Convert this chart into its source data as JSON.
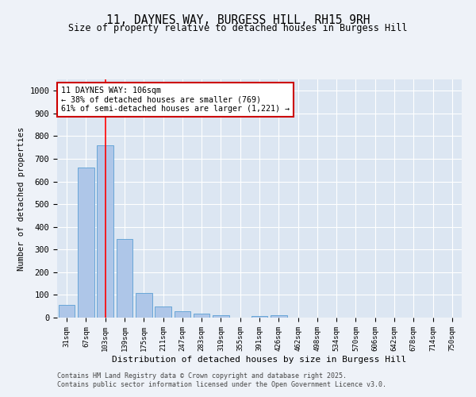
{
  "title_line1": "11, DAYNES WAY, BURGESS HILL, RH15 9RH",
  "title_line2": "Size of property relative to detached houses in Burgess Hill",
  "xlabel": "Distribution of detached houses by size in Burgess Hill",
  "ylabel": "Number of detached properties",
  "categories": [
    "31sqm",
    "67sqm",
    "103sqm",
    "139sqm",
    "175sqm",
    "211sqm",
    "247sqm",
    "283sqm",
    "319sqm",
    "355sqm",
    "391sqm",
    "426sqm",
    "462sqm",
    "498sqm",
    "534sqm",
    "570sqm",
    "606sqm",
    "642sqm",
    "678sqm",
    "714sqm",
    "750sqm"
  ],
  "values": [
    55,
    660,
    760,
    345,
    110,
    50,
    28,
    18,
    10,
    0,
    6,
    10,
    0,
    0,
    0,
    0,
    0,
    0,
    0,
    0,
    0
  ],
  "bar_color": "#aec6e8",
  "bar_edge_color": "#5a9fd4",
  "red_line_index": 2,
  "annotation_text": "11 DAYNES WAY: 106sqm\n← 38% of detached houses are smaller (769)\n61% of semi-detached houses are larger (1,221) →",
  "annotation_box_color": "#ffffff",
  "annotation_box_edge": "#cc0000",
  "ylim": [
    0,
    1050
  ],
  "yticks": [
    0,
    100,
    200,
    300,
    400,
    500,
    600,
    700,
    800,
    900,
    1000
  ],
  "footer_line1": "Contains HM Land Registry data © Crown copyright and database right 2025.",
  "footer_line2": "Contains public sector information licensed under the Open Government Licence v3.0.",
  "bg_color": "#eef2f8",
  "plot_bg_color": "#dce6f2",
  "grid_color": "#ffffff"
}
